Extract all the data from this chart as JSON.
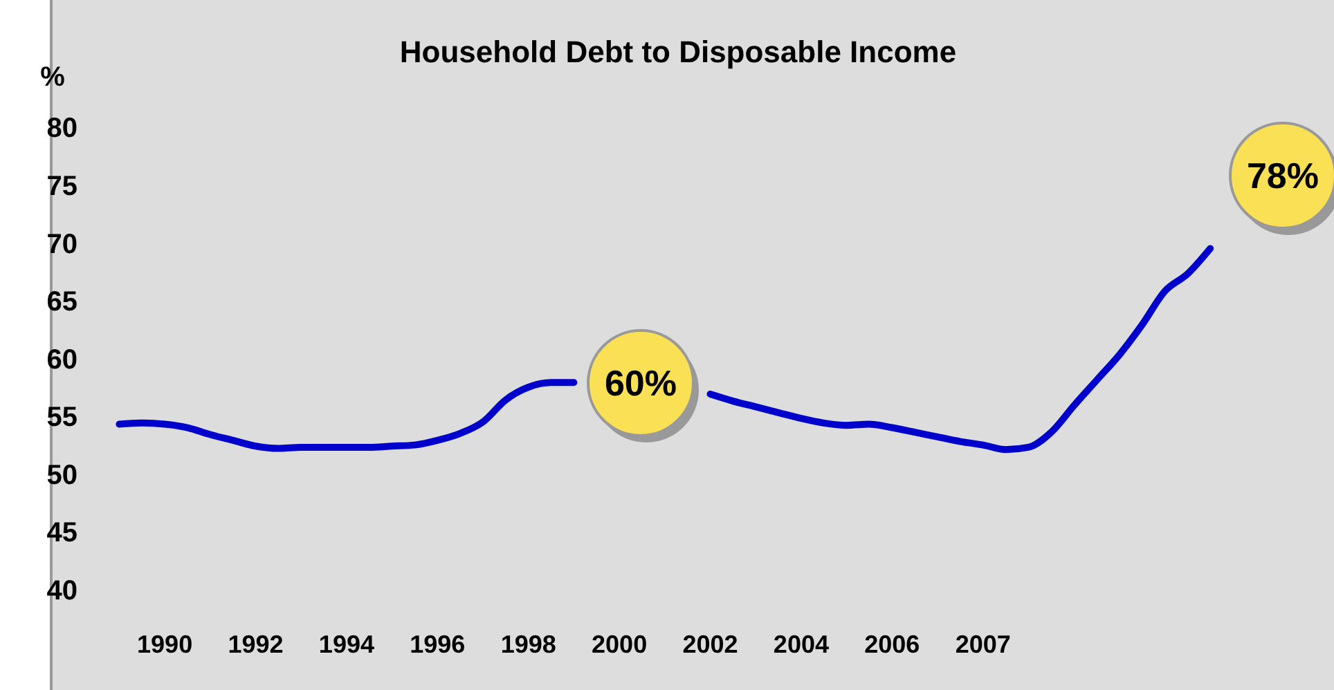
{
  "chart_data": {
    "type": "line",
    "title": "Household Debt to Disposable Income",
    "ylabel": "%",
    "categories": [
      null,
      null,
      "1990",
      null,
      null,
      null,
      "1992",
      null,
      null,
      null,
      "1994",
      null,
      null,
      null,
      "1996",
      null,
      null,
      null,
      "1998",
      null,
      null,
      null,
      "2000",
      null,
      null,
      null,
      "2002",
      null,
      null,
      null,
      "2004",
      null,
      null,
      null,
      "2006",
      null,
      null,
      null,
      "2007",
      null,
      null,
      null,
      null,
      null,
      null,
      null,
      null,
      null,
      null,
      null,
      null,
      null,
      null
    ],
    "series": [
      {
        "color": "#0000cc",
        "values": [
          54.4,
          54.5,
          54.4,
          54.1,
          53.5,
          53.0,
          52.5,
          52.3,
          52.4,
          52.4,
          52.4,
          52.4,
          52.5,
          52.6,
          53.0,
          53.6,
          54.6,
          56.5,
          57.6,
          58.0,
          58.0,
          null,
          null,
          null,
          null,
          null,
          57.0,
          56.4,
          55.9,
          55.4,
          54.9,
          54.5,
          54.3,
          54.4,
          54.1,
          53.7,
          53.3,
          52.9,
          52.6,
          52.2,
          52.4,
          53.7,
          56.0,
          58.2,
          60.4,
          63.0,
          65.9,
          67.4,
          69.6,
          null,
          null,
          null,
          null
        ]
      }
    ],
    "ylim": [
      31.4,
      91.1
    ],
    "yticks": [
      40,
      45,
      50,
      55,
      60,
      65,
      70,
      75,
      80
    ],
    "annotations": [
      "60%",
      "78%"
    ],
    "grid": false,
    "marker": "none",
    "line_style": "solid"
  }
}
